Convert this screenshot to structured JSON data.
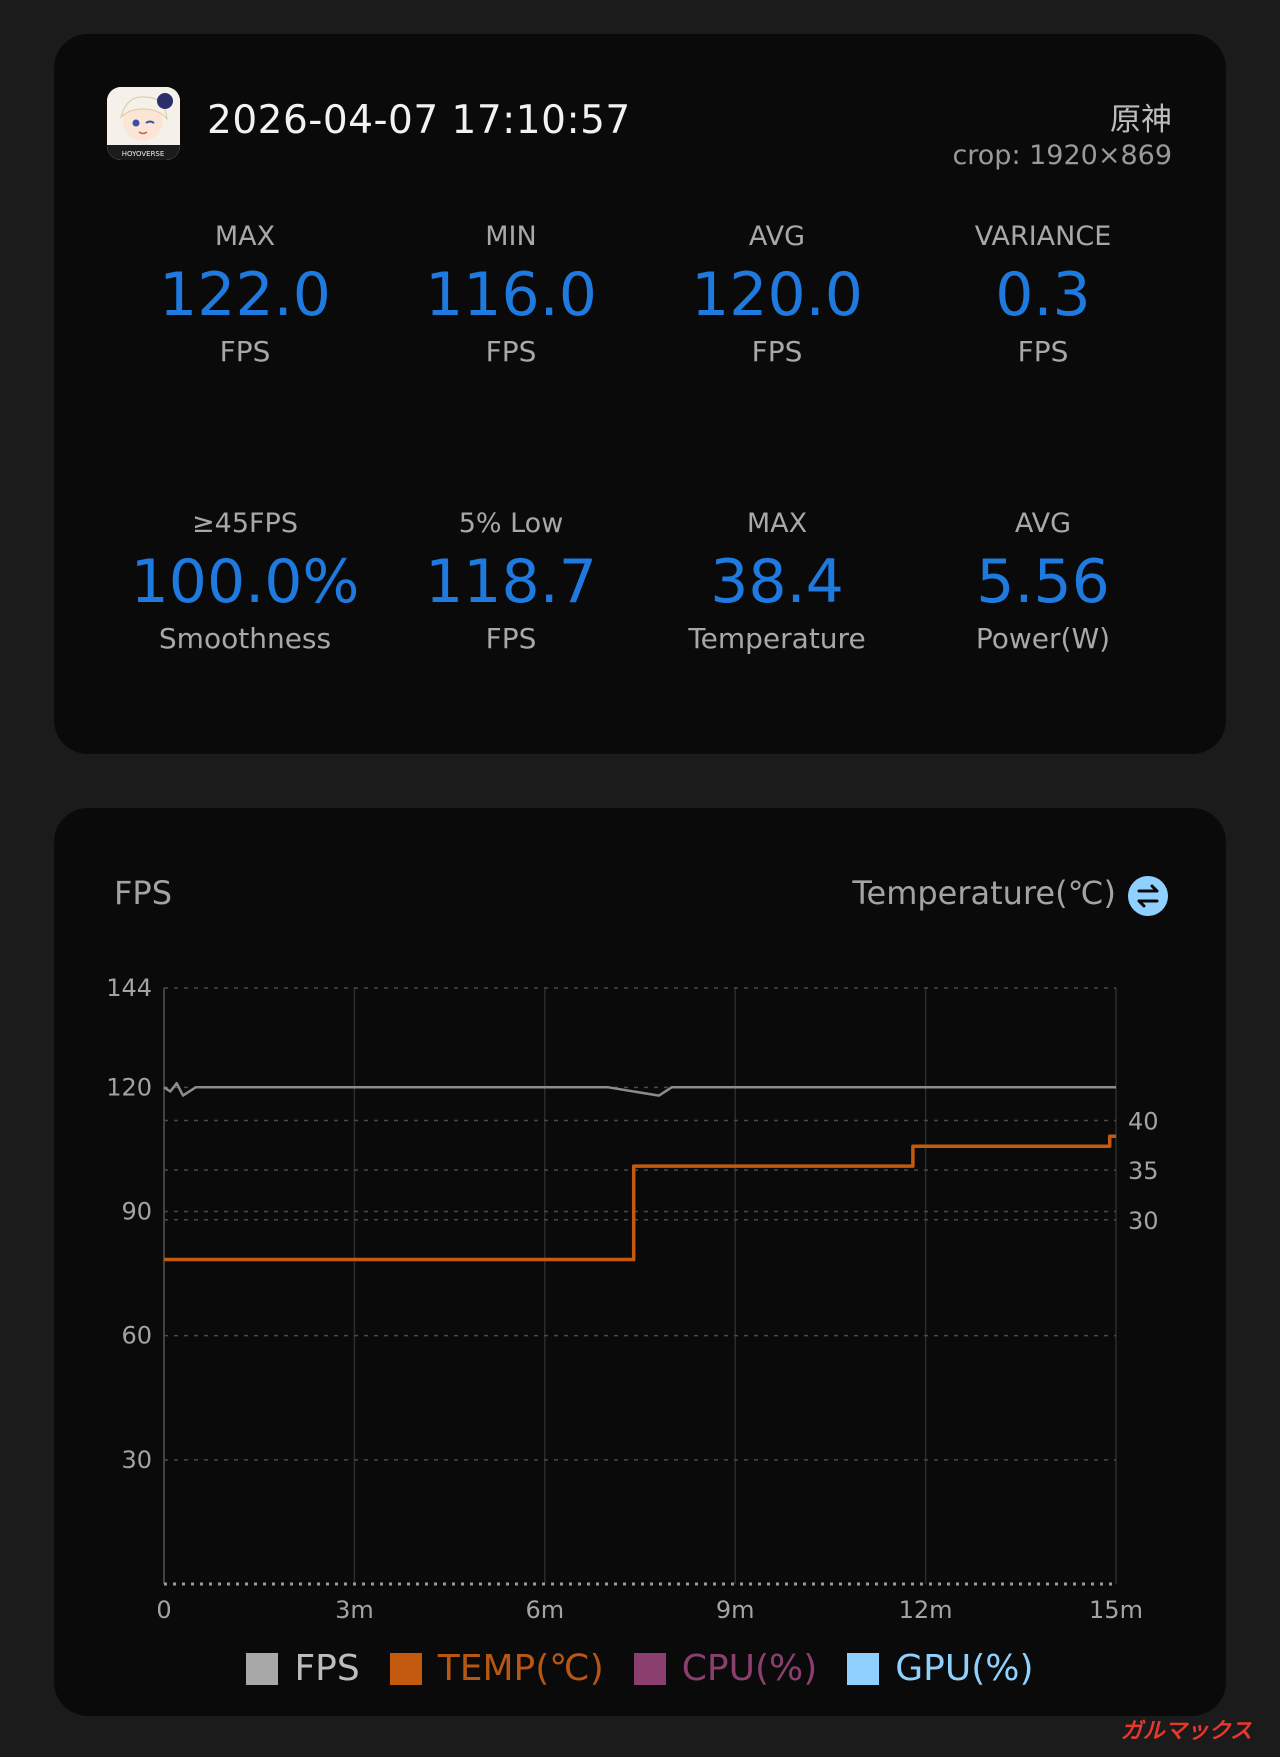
{
  "summary": {
    "timestamp": "2026-04-07 17:10:57",
    "game_name": "原神",
    "crop": "crop: 1920×869",
    "stats": [
      {
        "label": "MAX",
        "value": "122.0",
        "unit": "FPS"
      },
      {
        "label": "MIN",
        "value": "116.0",
        "unit": "FPS"
      },
      {
        "label": "AVG",
        "value": "120.0",
        "unit": "FPS"
      },
      {
        "label": "VARIANCE",
        "value": "0.3",
        "unit": "FPS"
      },
      {
        "label": "≥45FPS",
        "value": "100.0%",
        "unit": "Smoothness"
      },
      {
        "label": "5% Low",
        "value": "118.7",
        "unit": "FPS"
      },
      {
        "label": "MAX",
        "value": "38.4",
        "unit": "Temperature"
      },
      {
        "label": "AVG",
        "value": "5.56",
        "unit": "Power(W)"
      }
    ],
    "icon_text": "HOYOVERSE"
  },
  "chart_header": {
    "left_title": "FPS",
    "right_title": "Temperature(℃)",
    "swap_icon": "swap-icon"
  },
  "legend": [
    {
      "label": "FPS",
      "color": "#a8a8a8",
      "text_color": "#bdbdbd"
    },
    {
      "label": "TEMP(℃)",
      "color": "#c45a10",
      "text_color": "#b85613"
    },
    {
      "label": "CPU(%)",
      "color": "#8a3f6e",
      "text_color": "#8a3f6e"
    },
    {
      "label": "GPU(%)",
      "color": "#8fd0ff",
      "text_color": "#8fd0ff"
    }
  ],
  "watermark": "ガルマックス",
  "chart_data": {
    "type": "line",
    "x_ticks": [
      "0",
      "3m",
      "6m",
      "9m",
      "12m",
      "15m"
    ],
    "x_range_minutes": [
      0,
      15
    ],
    "y_left_ticks": [
      144,
      120,
      90,
      60,
      30
    ],
    "y_left_range": [
      0,
      144
    ],
    "y_right_ticks": [
      40,
      35,
      30
    ],
    "y_right_range": [
      20,
      40
    ],
    "grid": true,
    "series": [
      {
        "name": "FPS",
        "axis": "left",
        "color": "#8c8c8c",
        "points": [
          [
            0,
            120
          ],
          [
            0.1,
            119
          ],
          [
            0.2,
            121
          ],
          [
            0.3,
            118
          ],
          [
            0.5,
            120
          ],
          [
            1,
            120
          ],
          [
            2,
            120
          ],
          [
            3,
            120
          ],
          [
            4,
            120
          ],
          [
            5,
            120
          ],
          [
            6,
            120
          ],
          [
            7,
            120
          ],
          [
            7.8,
            118
          ],
          [
            8,
            120
          ],
          [
            9,
            120
          ],
          [
            10,
            120
          ],
          [
            11,
            120
          ],
          [
            12,
            120
          ],
          [
            13,
            120
          ],
          [
            14,
            120
          ],
          [
            15,
            120
          ]
        ]
      },
      {
        "name": "TEMP(℃)",
        "axis": "right",
        "color": "#c45a10",
        "points": [
          [
            0,
            26
          ],
          [
            7.4,
            26
          ],
          [
            7.4,
            35.4
          ],
          [
            11.8,
            35.4
          ],
          [
            11.8,
            37.4
          ],
          [
            14.9,
            37.4
          ],
          [
            14.9,
            38.4
          ],
          [
            15,
            38.4
          ]
        ]
      }
    ]
  }
}
